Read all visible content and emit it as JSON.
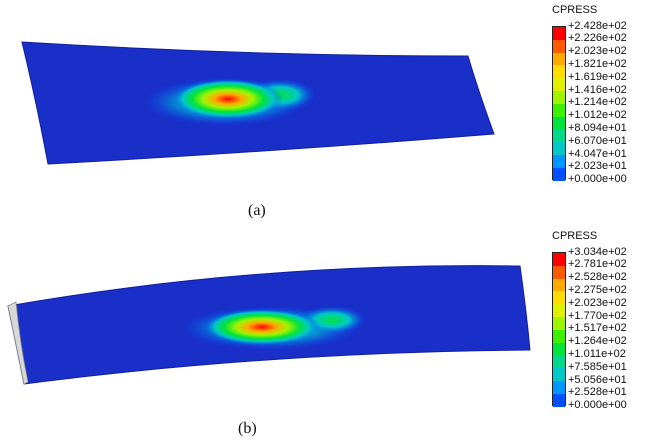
{
  "panels": [
    {
      "id": "a",
      "caption": "(a)",
      "legend": {
        "title": "CPRESS",
        "labels": [
          "+2.428e+02",
          "+2.226e+02",
          "+2.023e+02",
          "+1.821e+02",
          "+1.619e+02",
          "+1.416e+02",
          "+1.214e+02",
          "+1.012e+02",
          "+8.094e+01",
          "+6.070e+01",
          "+4.047e+01",
          "+2.023e+01",
          "+0.000e+00"
        ]
      }
    },
    {
      "id": "b",
      "caption": "(b)",
      "legend": {
        "title": "CPRESS",
        "labels": [
          "+3.034e+02",
          "+2.781e+02",
          "+2.528e+02",
          "+2.275e+02",
          "+2.023e+02",
          "+1.770e+02",
          "+1.517e+02",
          "+1.264e+02",
          "+1.011e+02",
          "+7.585e+01",
          "+5.056e+01",
          "+2.528e+01",
          "+0.000e+00"
        ]
      }
    }
  ],
  "colors": {
    "contour_bands": [
      "#ff0000",
      "#ff5a00",
      "#ffaa00",
      "#ffdd00",
      "#e0f000",
      "#9ff500",
      "#3cf000",
      "#00e23c",
      "#00d88c",
      "#00c8c8",
      "#0096ff",
      "#0050ff",
      "#0000ff"
    ],
    "background_part": "#1a2ec8"
  }
}
